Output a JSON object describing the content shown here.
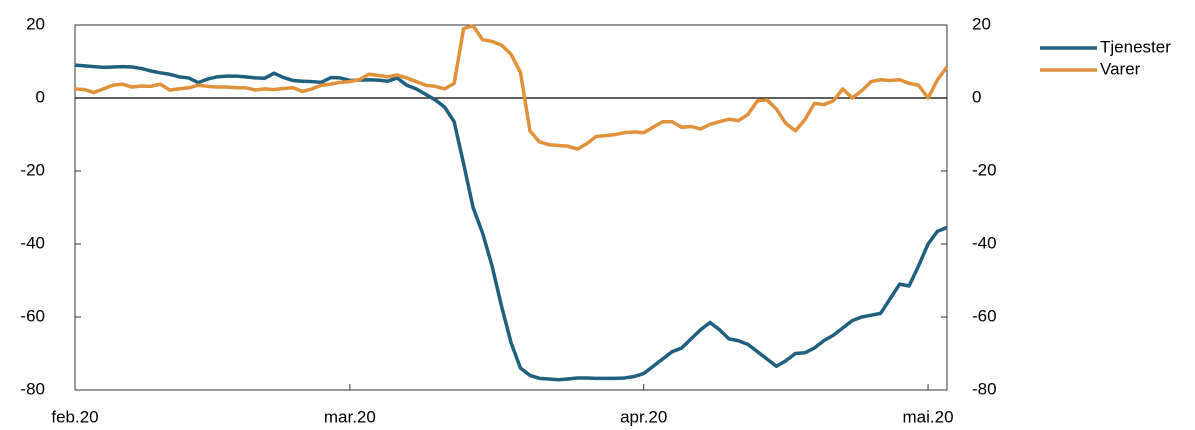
{
  "chart_data": {
    "type": "line",
    "x": [
      0,
      1,
      2,
      3,
      4,
      5,
      6,
      7,
      8,
      9,
      10,
      11,
      12,
      13,
      14,
      15,
      16,
      17,
      18,
      19,
      20,
      21,
      22,
      23,
      24,
      25,
      26,
      27,
      28,
      29,
      30,
      31,
      32,
      33,
      34,
      35,
      36,
      37,
      38,
      39,
      40,
      41,
      42,
      43,
      44,
      45,
      46,
      47,
      48,
      49,
      50,
      51,
      52,
      53,
      54,
      55,
      56,
      57,
      58,
      59,
      60,
      61,
      62,
      63,
      64,
      65,
      66,
      67,
      68,
      69,
      70,
      71,
      72,
      73,
      74,
      75,
      76,
      77,
      78,
      79,
      80,
      81,
      82,
      83,
      84,
      85,
      86,
      87,
      88,
      89,
      90,
      91,
      92
    ],
    "xlim": [
      0,
      92
    ],
    "xticks": [
      {
        "value": 0,
        "label": "feb.20"
      },
      {
        "value": 29,
        "label": "mar.20"
      },
      {
        "value": 60,
        "label": "apr.20"
      },
      {
        "value": 90,
        "label": "mai.20"
      }
    ],
    "ylim": [
      -80,
      20
    ],
    "yticks": [
      -80,
      -60,
      -40,
      -20,
      0,
      20
    ],
    "y2lim": [
      -80,
      20
    ],
    "y2ticks": [
      -80,
      -60,
      -40,
      -20,
      0,
      20
    ],
    "zero_line": true,
    "legend": "right",
    "series": [
      {
        "name": "Tjenester",
        "color": "#1f5f7f",
        "values": [
          9,
          8.8,
          8.6,
          8.4,
          8.5,
          8.6,
          8.5,
          8.1,
          7.4,
          6.9,
          6.5,
          5.8,
          5.5,
          4.2,
          5.2,
          5.8,
          6,
          6,
          5.8,
          5.5,
          5.4,
          6.8,
          5.6,
          4.8,
          4.6,
          4.5,
          4.3,
          5.6,
          5.5,
          4.8,
          4.9,
          5,
          4.9,
          4.6,
          5.5,
          3.5,
          2.5,
          1,
          -0.5,
          -2.5,
          -6.5,
          -18,
          -30,
          -37,
          -46,
          -57,
          -67,
          -74,
          -76,
          -76.8,
          -77,
          -77.2,
          -77,
          -76.7,
          -76.7,
          -76.8,
          -76.8,
          -76.8,
          -76.7,
          -76.3,
          -75.5,
          -73.5,
          -71.5,
          -69.5,
          -68.5,
          -66,
          -63.5,
          -61.5,
          -63.5,
          -66,
          -66.5,
          -67.5,
          -69.5,
          -71.5,
          -73.5,
          -72,
          -70,
          -69.8,
          -68.5,
          -66.5,
          -65,
          -63,
          -61,
          -60,
          -59.5,
          -59,
          -55,
          -51,
          -51.5,
          -46,
          -40,
          -36.5,
          -35.5
        ]
      },
      {
        "name": "Varer",
        "color": "#e0913a",
        "values": [
          2.5,
          2.3,
          1.5,
          2.5,
          3.5,
          3.8,
          3,
          3.3,
          3.2,
          3.8,
          2.2,
          2.5,
          2.8,
          3.5,
          3.2,
          3,
          3,
          2.8,
          2.8,
          2.2,
          2.5,
          2.3,
          2.6,
          2.8,
          1.8,
          2.5,
          3.5,
          3.8,
          4.3,
          4.5,
          5,
          6.5,
          6.2,
          5.8,
          6.3,
          5.5,
          4.5,
          3.5,
          3.2,
          2.5,
          4,
          19,
          19.8,
          16,
          15.5,
          14.5,
          12,
          7,
          -9,
          -12,
          -12.8,
          -13,
          -13.2,
          -14,
          -12.5,
          -10.5,
          -10.3,
          -10,
          -9.5,
          -9.3,
          -9.5,
          -8,
          -6.5,
          -6.5,
          -8,
          -7.8,
          -8.5,
          -7.2,
          -6.5,
          -5.8,
          -6.2,
          -4.5,
          -0.8,
          -0.5,
          -3,
          -7,
          -9,
          -6,
          -1.5,
          -1.8,
          -0.8,
          2.5,
          0,
          2,
          4.5,
          5,
          4.8,
          5,
          4,
          3.5,
          0,
          5,
          8.5
        ]
      }
    ]
  }
}
